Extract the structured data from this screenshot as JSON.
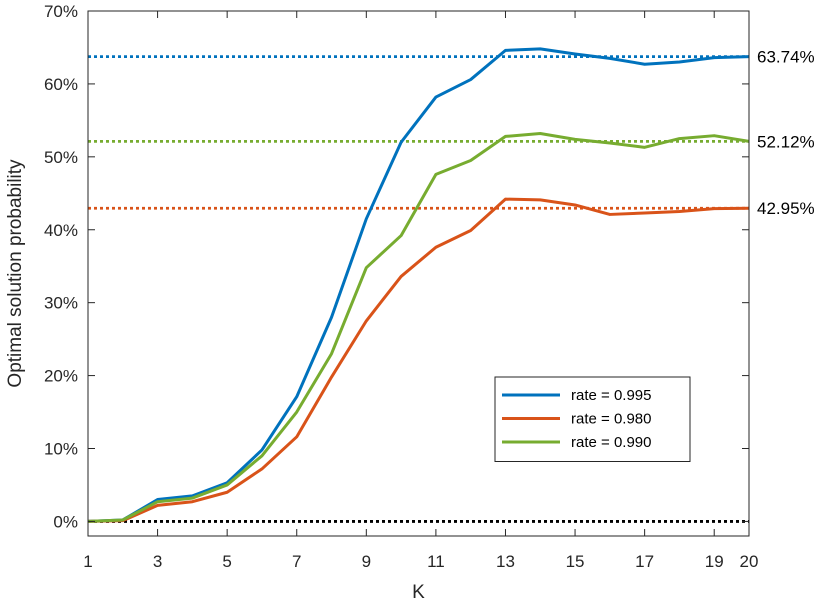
{
  "chart_data": {
    "type": "line",
    "xlabel": "K",
    "ylabel": "Optimal solution probability",
    "xlim": [
      1,
      20
    ],
    "ylim": [
      -2,
      70
    ],
    "x_ticks": [
      1,
      3,
      5,
      7,
      9,
      11,
      13,
      15,
      17,
      19,
      20
    ],
    "y_ticks": [
      0,
      10,
      20,
      30,
      40,
      50,
      60,
      70
    ],
    "y_tick_labels": [
      "0%",
      "10%",
      "20%",
      "30%",
      "40%",
      "50%",
      "60%",
      "70%"
    ],
    "x": [
      1,
      2,
      3,
      4,
      5,
      6,
      7,
      8,
      9,
      10,
      11,
      12,
      13,
      14,
      15,
      16,
      17,
      18,
      19,
      20
    ],
    "series": [
      {
        "name": "rate = 0.995",
        "color": "#0072BD",
        "values": [
          0.0,
          0.2,
          3.0,
          3.5,
          5.3,
          9.8,
          17.1,
          28.0,
          41.5,
          52.0,
          58.2,
          60.6,
          64.6,
          64.8,
          64.1,
          63.5,
          62.7,
          63.0,
          63.6,
          63.74
        ]
      },
      {
        "name": "rate = 0.980",
        "color": "#D95319",
        "values": [
          0.0,
          0.1,
          2.2,
          2.7,
          4.0,
          7.2,
          11.6,
          19.8,
          27.5,
          33.6,
          37.6,
          39.9,
          44.2,
          44.1,
          43.4,
          42.1,
          42.3,
          42.5,
          42.9,
          42.95
        ]
      },
      {
        "name": "rate = 0.990",
        "color": "#77AC30",
        "values": [
          0.0,
          0.2,
          2.7,
          3.2,
          5.0,
          9.0,
          15.0,
          23.0,
          34.8,
          39.2,
          47.6,
          49.5,
          52.8,
          53.2,
          52.4,
          51.9,
          51.3,
          52.5,
          52.9,
          52.12
        ]
      }
    ],
    "reference_lines": [
      {
        "value": 63.74,
        "label": "63.74%",
        "color": "#0072BD"
      },
      {
        "value": 52.12,
        "label": "52.12%",
        "color": "#77AC30"
      },
      {
        "value": 42.95,
        "label": "42.95%",
        "color": "#D95319"
      },
      {
        "value": 0,
        "label": "",
        "color": "#000000"
      }
    ],
    "legend": {
      "placement": "lower-right",
      "entries": [
        "rate = 0.995",
        "rate = 0.980",
        "rate = 0.990"
      ]
    },
    "grid": false
  }
}
